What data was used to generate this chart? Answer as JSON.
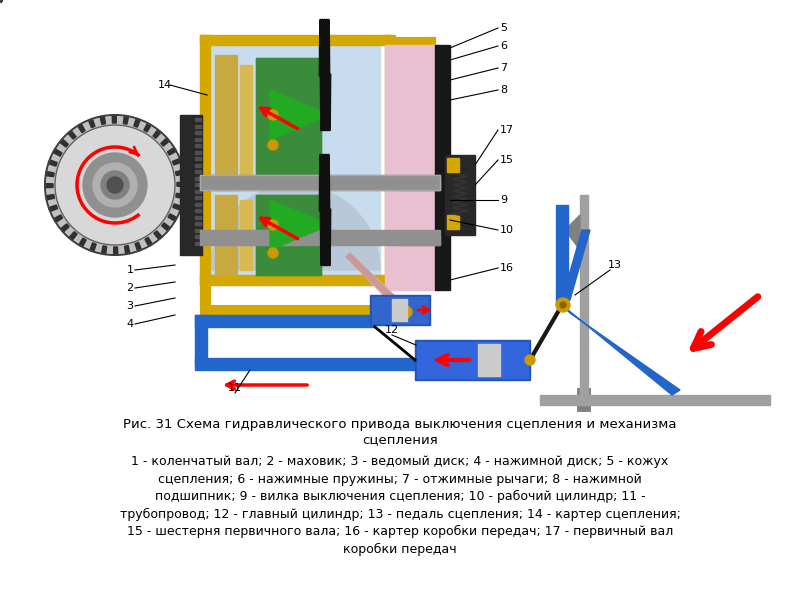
{
  "title_line1": "Рис. 31 Схема гидравлического привода выключения сцепления и механизма",
  "title_line2": "сцепления",
  "caption": "1 - коленчатый вал; 2 - маховик; 3 - ведомый диск; 4 - нажимной диск; 5 - кожух\nсцепления; 6 - нажимные пружины; 7 - отжимные рычаги; 8 - нажимной\nподшипник; 9 - вилка выключения сцепления; 10 - рабочий цилиндр; 11 -\nтрубопровод; 12 - главный цилиндр; 13 - педаль сцепления; 14 - картер сцепления;\n15 - шестерня первичного вала; 16 - картер коробки передач; 17 - первичный вал\nкоробки передач",
  "bg_color": "#ffffff",
  "text_color": "#000000",
  "fig_width": 8.0,
  "fig_height": 6.0,
  "dpi": 100
}
